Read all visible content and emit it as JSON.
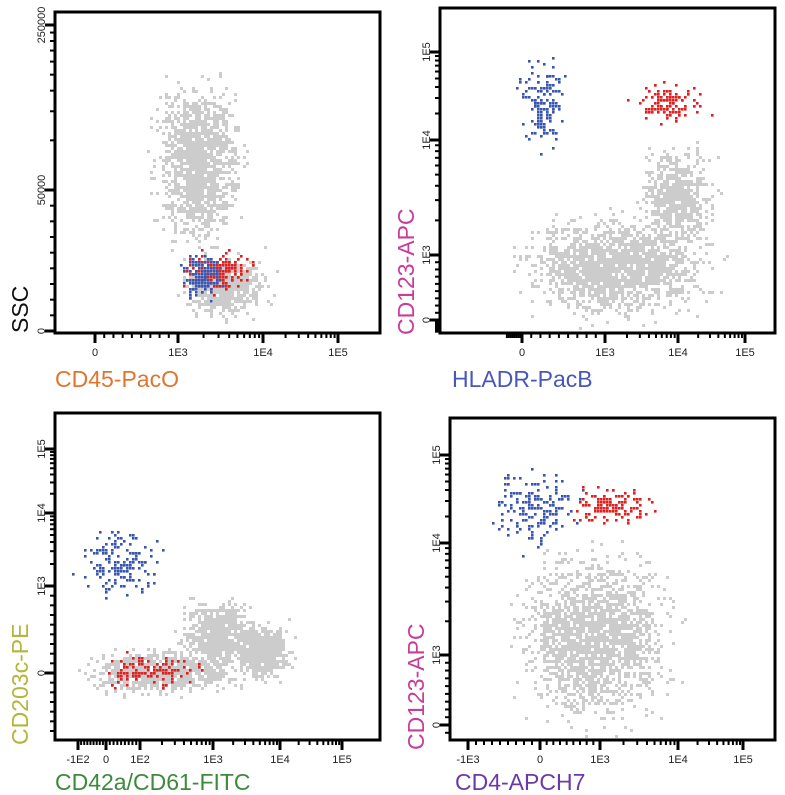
{
  "colors": {
    "background_events": "#cccccc",
    "blue_population": "#3a55b0",
    "red_population": "#dd2020",
    "axis": "#000000"
  },
  "chart_data": [
    {
      "type": "scatter",
      "xlabel": "CD45-PacO",
      "xlabel_color": "#e0762e",
      "ylabel": "SSC",
      "ylabel_color": "#111111",
      "x_ticks": [
        "0",
        "1E3",
        "1E4",
        "1E5"
      ],
      "y_ticks": [
        "0",
        "50000",
        "250000"
      ],
      "x_scale": "biexponential",
      "y_scale": "linear-log",
      "populations": [
        {
          "color": "gray",
          "x_range": [
            650,
            6000
          ],
          "y_range": [
            28000,
            160000
          ]
        },
        {
          "color": "gray",
          "x_range": [
            1000,
            12000
          ],
          "y_range": [
            4000,
            28000
          ]
        },
        {
          "color": "red",
          "x_range": [
            1100,
            8000
          ],
          "y_range": [
            13000,
            30000
          ]
        },
        {
          "color": "blue",
          "x_range": [
            1000,
            3500
          ],
          "y_range": [
            11000,
            28000
          ]
        }
      ]
    },
    {
      "type": "scatter",
      "xlabel": "HLADR-PacB",
      "xlabel_color": "#4a56b8",
      "ylabel": "CD123-APC",
      "ylabel_color": "#c83c9a",
      "x_ticks": [
        "0",
        "1E3",
        "1E4",
        "1E5"
      ],
      "y_ticks": [
        "0",
        "1E3",
        "1E4",
        "1E5"
      ],
      "x_scale": "biexponential",
      "y_scale": "biexponential",
      "populations": [
        {
          "color": "gray",
          "x_range": [
            -500,
            40000
          ],
          "y_range": [
            -200,
            2500
          ]
        },
        {
          "color": "gray",
          "x_range": [
            2500,
            40000
          ],
          "y_range": [
            1000,
            10000
          ]
        },
        {
          "color": "blue",
          "x_range": [
            -300,
            550
          ],
          "y_range": [
            7000,
            100000
          ]
        },
        {
          "color": "red",
          "x_range": [
            1800,
            30000
          ],
          "y_range": [
            15000,
            50000
          ]
        }
      ]
    },
    {
      "type": "scatter",
      "xlabel": "CD42a/CD61-FITC",
      "xlabel_color": "#3d8a3d",
      "ylabel": "CD203c-PE",
      "ylabel_color": "#b3b53c",
      "x_ticks": [
        "-1E2",
        "0",
        "1E2",
        "1E3",
        "1E4",
        "1E5"
      ],
      "y_ticks": [
        "0",
        "1E3",
        "1E4",
        "1E5"
      ],
      "x_scale": "biexponential",
      "y_scale": "biexponential",
      "populations": [
        {
          "color": "gray",
          "x_range": [
            -100,
            3000
          ],
          "y_range": [
            -250,
            300
          ]
        },
        {
          "color": "gray",
          "x_range": [
            300,
            5000
          ],
          "y_range": [
            0,
            900
          ]
        },
        {
          "color": "gray",
          "x_range": [
            2000,
            15000
          ],
          "y_range": [
            -100,
            600
          ]
        },
        {
          "color": "blue",
          "x_range": [
            -120,
            250
          ],
          "y_range": [
            700,
            9000
          ]
        },
        {
          "color": "red",
          "x_range": [
            -50,
            800
          ],
          "y_range": [
            -200,
            250
          ]
        }
      ]
    },
    {
      "type": "scatter",
      "xlabel": "CD4-APCH7",
      "xlabel_color": "#6a3aa8",
      "ylabel": "CD123-APC",
      "ylabel_color": "#c83c9a",
      "x_ticks": [
        "-1E3",
        "0",
        "1E3",
        "1E4",
        "1E5"
      ],
      "y_ticks": [
        "0",
        "1E3",
        "1E4",
        "1E5"
      ],
      "x_scale": "biexponential",
      "y_scale": "biexponential",
      "populations": [
        {
          "color": "gray",
          "x_range": [
            -400,
            10000
          ],
          "y_range": [
            -100,
            10000
          ]
        },
        {
          "color": "blue",
          "x_range": [
            -800,
            800
          ],
          "y_range": [
            8000,
            90000
          ]
        },
        {
          "color": "red",
          "x_range": [
            400,
            6000
          ],
          "y_range": [
            15000,
            50000
          ]
        }
      ]
    }
  ]
}
